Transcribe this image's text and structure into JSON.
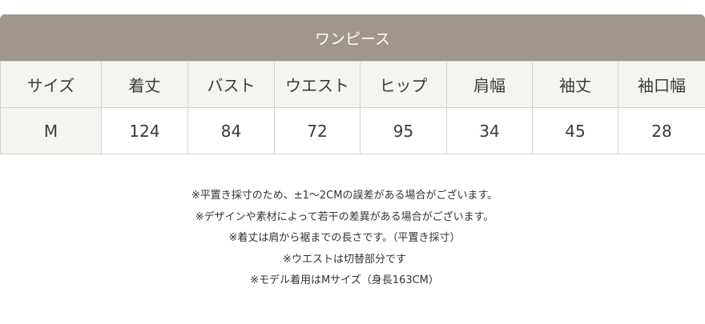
{
  "title": "ワンピース",
  "headers": [
    "サイズ",
    "着丈",
    "バスト",
    "ウエスト",
    "ヒップ",
    "肩幅",
    "袖丈",
    "袖口幅"
  ],
  "rows": [
    [
      "M",
      "124",
      "84",
      "72",
      "95",
      "34",
      "45",
      "28"
    ]
  ],
  "notes": [
    "※平置き採寸のため、±1〜2CMの誤差がある場合がございます。",
    "※デザインや素材によって若干の差異がある場合がございます。",
    "※着丈は肩から裾までの長さです。（平置き採寸）",
    "※ウエストは切替部分です",
    "※モデル着用はMサイズ（身長163CM）"
  ],
  "colors": {
    "title_bg": "#a0968a",
    "header_bg": "#f6f4f1",
    "border": "#d4d2cf"
  }
}
